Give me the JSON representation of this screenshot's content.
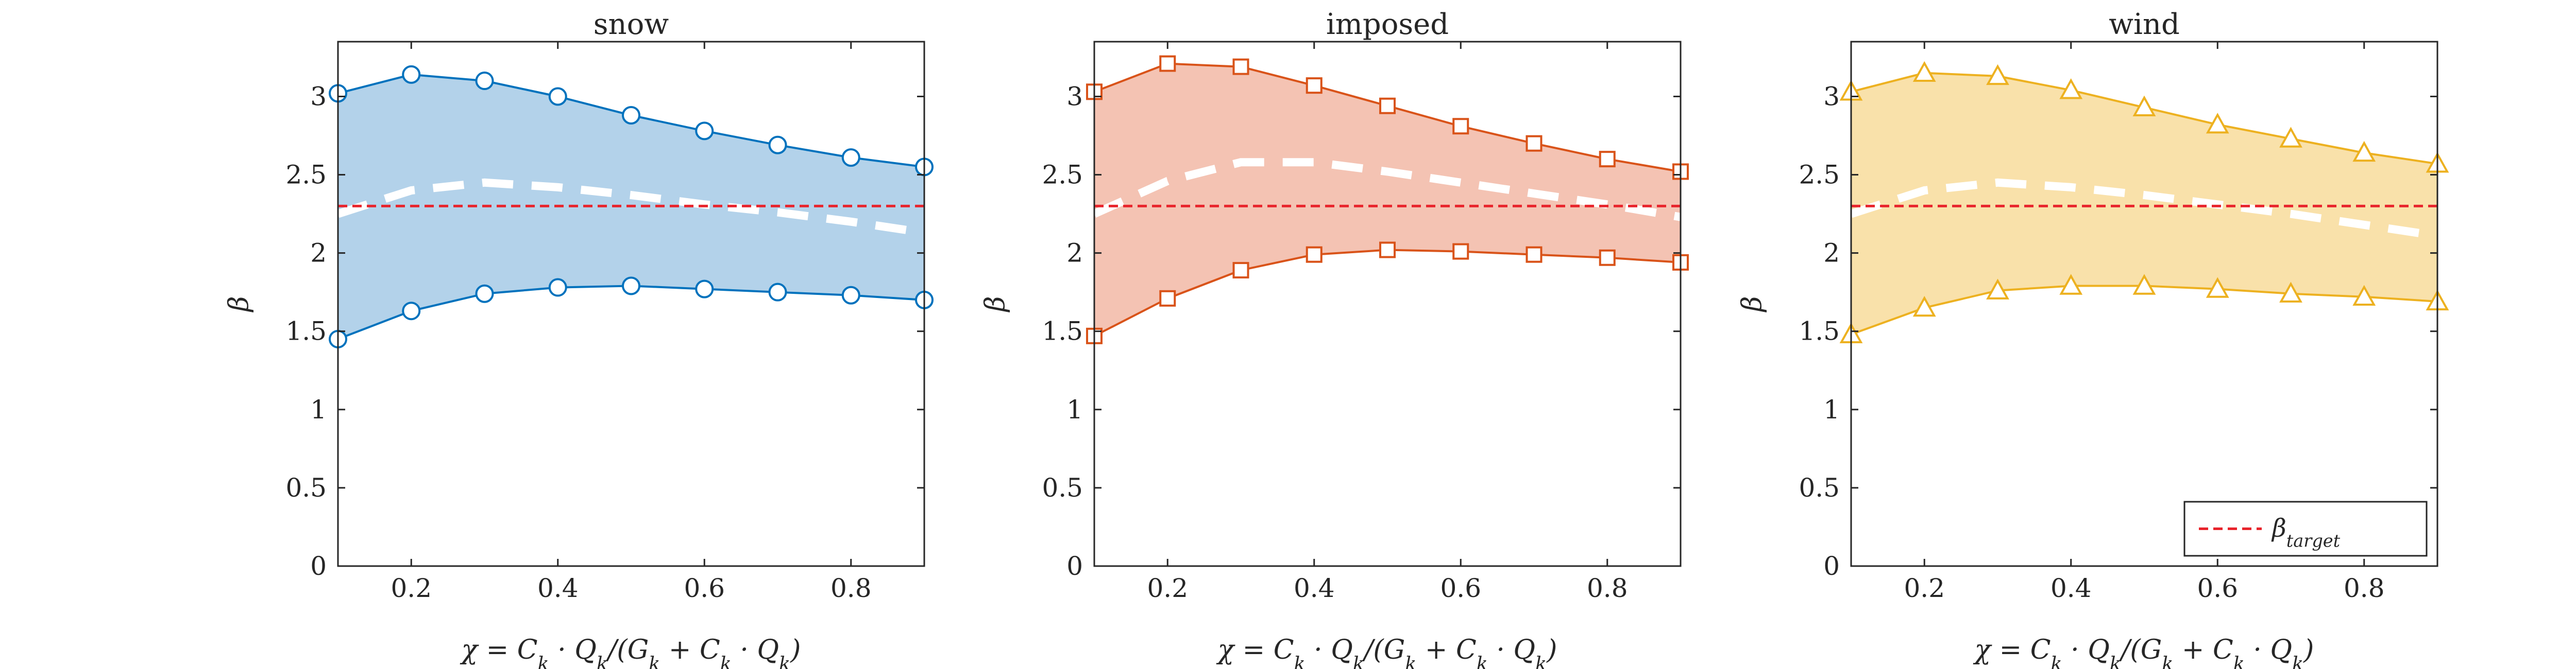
{
  "figure": {
    "legend_label": "β_target",
    "legend_location": "bottom-right of the wind panel"
  },
  "chart_data": [
    {
      "type": "area",
      "title": "snow",
      "xlabel": "χ = C_k · Q_k/(G_k + C_k · Q_k)",
      "ylabel": "β",
      "xlim": [
        0.1,
        0.9
      ],
      "ylim": [
        0,
        3.35
      ],
      "xticks": [
        "0.2",
        "0.4",
        "0.6",
        "0.8"
      ],
      "yticks": [
        "0",
        "0.5",
        "1",
        "1.5",
        "2",
        "2.5",
        "3"
      ],
      "x": [
        0.1,
        0.2,
        0.3,
        0.4,
        0.5,
        0.6,
        0.7,
        0.8,
        0.9
      ],
      "upper": [
        3.02,
        3.14,
        3.1,
        3.0,
        2.88,
        2.78,
        2.69,
        2.61,
        2.55
      ],
      "lower": [
        1.45,
        1.63,
        1.74,
        1.78,
        1.79,
        1.77,
        1.75,
        1.73,
        1.7
      ],
      "mean": [
        2.25,
        2.4,
        2.45,
        2.42,
        2.37,
        2.31,
        2.26,
        2.2,
        2.13
      ],
      "target": 2.3,
      "fill_color": "#b3d2ea",
      "line_color": "#0072bd",
      "marker": "circle",
      "grid": false
    },
    {
      "type": "area",
      "title": "imposed",
      "xlabel": "χ = C_k · Q_k/(G_k + C_k · Q_k)",
      "ylabel": "β",
      "xlim": [
        0.1,
        0.9
      ],
      "ylim": [
        0,
        3.35
      ],
      "xticks": [
        "0.2",
        "0.4",
        "0.6",
        "0.8"
      ],
      "yticks": [
        "0",
        "0.5",
        "1",
        "1.5",
        "2",
        "2.5",
        "3"
      ],
      "x": [
        0.1,
        0.2,
        0.3,
        0.4,
        0.5,
        0.6,
        0.7,
        0.8,
        0.9
      ],
      "upper": [
        3.03,
        3.21,
        3.19,
        3.07,
        2.94,
        2.81,
        2.7,
        2.6,
        2.52
      ],
      "lower": [
        1.47,
        1.71,
        1.89,
        1.99,
        2.02,
        2.01,
        1.99,
        1.97,
        1.94
      ],
      "mean": [
        2.25,
        2.46,
        2.58,
        2.58,
        2.52,
        2.45,
        2.38,
        2.31,
        2.23
      ],
      "target": 2.3,
      "fill_color": "#f4c3b3",
      "line_color": "#d95319",
      "marker": "square",
      "grid": false
    },
    {
      "type": "area",
      "title": "wind",
      "xlabel": "χ = C_k · Q_k/(G_k + C_k · Q_k)",
      "ylabel": "β",
      "xlim": [
        0.1,
        0.9
      ],
      "ylim": [
        0,
        3.35
      ],
      "xticks": [
        "0.2",
        "0.4",
        "0.6",
        "0.8"
      ],
      "yticks": [
        "0",
        "0.5",
        "1",
        "1.5",
        "2",
        "2.5",
        "3"
      ],
      "x": [
        0.1,
        0.2,
        0.3,
        0.4,
        0.5,
        0.6,
        0.7,
        0.8,
        0.9
      ],
      "upper": [
        3.03,
        3.15,
        3.13,
        3.04,
        2.93,
        2.82,
        2.73,
        2.64,
        2.57
      ],
      "lower": [
        1.48,
        1.65,
        1.76,
        1.79,
        1.79,
        1.77,
        1.74,
        1.72,
        1.69
      ],
      "mean": [
        2.25,
        2.4,
        2.45,
        2.42,
        2.37,
        2.31,
        2.25,
        2.18,
        2.11
      ],
      "target": 2.3,
      "fill_color": "#f9e1aa",
      "line_color": "#edb120",
      "marker": "triangle",
      "grid": false
    }
  ]
}
